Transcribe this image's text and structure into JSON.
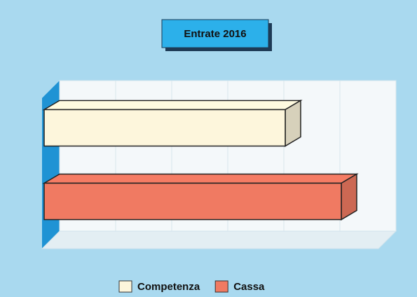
{
  "chart_data": {
    "type": "bar3d",
    "title": "Entrate 2016",
    "orientation": "horizontal",
    "series": [
      {
        "name": "Competenza",
        "color": "#fdf6dc",
        "values": [
          4.3
        ]
      },
      {
        "name": "Cassa",
        "color": "#f07a62",
        "values": [
          5.3
        ]
      }
    ],
    "xlim": [
      0,
      6
    ],
    "xticks": [
      0,
      1,
      2,
      3,
      4,
      5,
      6
    ],
    "grid": true,
    "legend": "bottom"
  }
}
